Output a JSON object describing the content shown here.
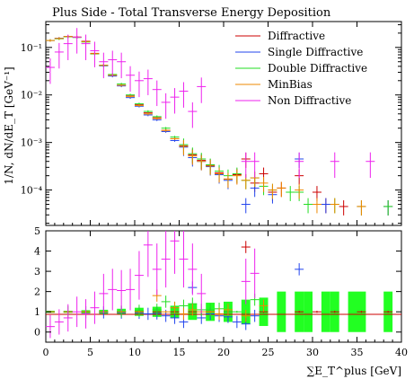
{
  "chart_data": {
    "type": "scatter",
    "title": "Plus Side - Total Transverse Energy Deposition",
    "xlabel": "∑E_T^plus [GeV]",
    "ylabel": "1/N, dN/dE_T [GeV⁻¹]",
    "xlim": [
      0,
      40
    ],
    "main": {
      "yscale": "log",
      "ylim": [
        1.8e-05,
        0.35
      ],
      "yticks": [
        {
          "v": 0.1,
          "l": "10⁻¹"
        },
        {
          "v": 0.01,
          "l": "10⁻²"
        },
        {
          "v": 0.001,
          "l": "10⁻³"
        },
        {
          "v": 0.0001,
          "l": "10⁻⁴"
        }
      ]
    },
    "ratio": {
      "yscale": "linear",
      "ylim": [
        -0.5,
        5
      ],
      "yticks": [
        0,
        1,
        2,
        3,
        4,
        5
      ]
    },
    "xticks": [
      0,
      5,
      10,
      15,
      20,
      25,
      30,
      35,
      40
    ],
    "legend_position": "top-right",
    "legend": [
      "Diffractive",
      "Single Diffractive",
      "Double Diffractive",
      "MinBias",
      "Non Diffractive"
    ],
    "colors": {
      "Diffractive": "#cc0000",
      "Single Diffractive": "#2244ee",
      "Double Diffractive": "#22dd22",
      "MinBias": "#ee8800",
      "Non Diffractive": "#ee22ee"
    },
    "series": [
      {
        "name": "Diffractive",
        "points": [
          [
            0.5,
            0.14
          ],
          [
            1.5,
            0.155
          ],
          [
            2.5,
            0.17
          ],
          [
            3.5,
            0.165
          ],
          [
            4.5,
            0.135
          ],
          [
            5.5,
            0.075
          ],
          [
            6.5,
            0.042
          ],
          [
            7.5,
            0.026
          ],
          [
            8.5,
            0.016
          ],
          [
            9.5,
            0.0095
          ],
          [
            10.5,
            0.0062
          ],
          [
            11.5,
            0.0042
          ],
          [
            12.5,
            0.0033
          ],
          [
            13.5,
            0.0018
          ],
          [
            14.5,
            0.0012
          ],
          [
            15.5,
            0.00085
          ],
          [
            16.5,
            0.00055
          ],
          [
            17.5,
            0.00042
          ],
          [
            18.5,
            0.00033
          ],
          [
            19.5,
            0.00023
          ],
          [
            20.5,
            0.00017
          ],
          [
            21.5,
            0.00021
          ],
          [
            22.5,
            0.00045
          ],
          [
            23.5,
            0.00014
          ],
          [
            24.5,
            0.00022
          ],
          [
            25.5,
            9e-05
          ],
          [
            26.5,
            0.00011
          ],
          [
            28.5,
            0.0002
          ],
          [
            30.5,
            9e-05
          ],
          [
            31.5,
            5e-05
          ],
          [
            33.5,
            4.5e-05
          ],
          [
            35.5,
            4.5e-05
          ],
          [
            38.5,
            4.5e-05
          ]
        ]
      },
      {
        "name": "Single Diffractive",
        "points": [
          [
            0.5,
            0.14
          ],
          [
            1.5,
            0.155
          ],
          [
            2.5,
            0.168
          ],
          [
            3.5,
            0.163
          ],
          [
            4.5,
            0.132
          ],
          [
            5.5,
            0.073
          ],
          [
            6.5,
            0.041
          ],
          [
            7.5,
            0.025
          ],
          [
            8.5,
            0.0155
          ],
          [
            9.5,
            0.0088
          ],
          [
            10.5,
            0.0058
          ],
          [
            11.5,
            0.0038
          ],
          [
            12.5,
            0.003
          ],
          [
            13.5,
            0.0017
          ],
          [
            14.5,
            0.0011
          ],
          [
            15.5,
            0.0008
          ],
          [
            16.5,
            0.00048
          ],
          [
            17.5,
            0.0004
          ],
          [
            18.5,
            0.00031
          ],
          [
            19.5,
            0.00021
          ],
          [
            20.5,
            0.00016
          ],
          [
            22.5,
            5e-05
          ],
          [
            23.5,
            0.00011
          ],
          [
            25.5,
            8e-05
          ],
          [
            28.5,
            0.00045
          ],
          [
            31.5,
            5e-05
          ],
          [
            38.5,
            4.5e-05
          ]
        ]
      },
      {
        "name": "Double Diffractive",
        "points": [
          [
            0.5,
            0.14
          ],
          [
            1.5,
            0.152
          ],
          [
            2.5,
            0.167
          ],
          [
            3.5,
            0.162
          ],
          [
            4.5,
            0.13
          ],
          [
            5.5,
            0.073
          ],
          [
            6.5,
            0.042
          ],
          [
            7.5,
            0.027
          ],
          [
            8.5,
            0.017
          ],
          [
            9.5,
            0.01
          ],
          [
            10.5,
            0.0065
          ],
          [
            11.5,
            0.0045
          ],
          [
            12.5,
            0.0035
          ],
          [
            13.5,
            0.002
          ],
          [
            14.5,
            0.0013
          ],
          [
            15.5,
            0.0009
          ],
          [
            16.5,
            0.00058
          ],
          [
            17.5,
            0.00045
          ],
          [
            18.5,
            0.00034
          ],
          [
            19.5,
            0.00025
          ],
          [
            20.5,
            0.0002
          ],
          [
            21.5,
            0.00022
          ],
          [
            22.5,
            0.00016
          ],
          [
            23.5,
            0.00018
          ],
          [
            24.5,
            0.00012
          ],
          [
            25.5,
            0.0001
          ],
          [
            27.5,
            9e-05
          ],
          [
            28.5,
            9e-05
          ],
          [
            29.5,
            5e-05
          ],
          [
            32.5,
            5e-05
          ],
          [
            35.5,
            4.5e-05
          ],
          [
            38.5,
            4.5e-05
          ]
        ]
      },
      {
        "name": "MinBias",
        "points": [
          [
            0.5,
            0.14
          ],
          [
            1.5,
            0.154
          ],
          [
            2.5,
            0.169
          ],
          [
            3.5,
            0.164
          ],
          [
            4.5,
            0.133
          ],
          [
            5.5,
            0.074
          ],
          [
            6.5,
            0.042
          ],
          [
            7.5,
            0.026
          ],
          [
            8.5,
            0.016
          ],
          [
            9.5,
            0.0093
          ],
          [
            10.5,
            0.006
          ],
          [
            11.5,
            0.004
          ],
          [
            12.5,
            0.0032
          ],
          [
            13.5,
            0.0018
          ],
          [
            14.5,
            0.0012
          ],
          [
            15.5,
            0.00083
          ],
          [
            16.5,
            0.00052
          ],
          [
            17.5,
            0.0004
          ],
          [
            18.5,
            0.00032
          ],
          [
            19.5,
            0.00022
          ],
          [
            20.5,
            0.00017
          ],
          [
            21.5,
            0.0002
          ],
          [
            22.5,
            0.00016
          ],
          [
            23.5,
            0.00018
          ],
          [
            24.5,
            0.00014
          ],
          [
            25.5,
            0.0001
          ],
          [
            26.5,
            0.00011
          ],
          [
            28.5,
            0.0001
          ],
          [
            30.5,
            5e-05
          ],
          [
            32.5,
            5e-05
          ],
          [
            35.5,
            4.5e-05
          ]
        ]
      },
      {
        "name": "Non Diffractive",
        "points": [
          [
            0.5,
            0.038
          ],
          [
            1.5,
            0.08
          ],
          [
            2.5,
            0.12
          ],
          [
            3.5,
            0.165
          ],
          [
            4.5,
            0.12
          ],
          [
            5.5,
            0.085
          ],
          [
            6.5,
            0.05
          ],
          [
            7.5,
            0.055
          ],
          [
            8.5,
            0.05
          ],
          [
            9.5,
            0.026
          ],
          [
            10.5,
            0.02
          ],
          [
            11.5,
            0.022
          ],
          [
            12.5,
            0.013
          ],
          [
            13.5,
            0.007
          ],
          [
            14.5,
            0.009
          ],
          [
            15.5,
            0.012
          ],
          [
            16.5,
            0.0045
          ],
          [
            17.5,
            0.015
          ],
          [
            22.5,
            0.0004
          ],
          [
            23.5,
            0.0004
          ],
          [
            28.5,
            0.0004
          ],
          [
            32.5,
            0.0004
          ],
          [
            36.5,
            0.0004
          ]
        ]
      }
    ],
    "ratio_series": [
      {
        "name": "Diffractive",
        "points": [
          [
            0.5,
            1
          ],
          [
            2.5,
            1
          ],
          [
            4.5,
            1
          ],
          [
            6.5,
            1
          ],
          [
            8.5,
            1
          ],
          [
            10.5,
            1
          ],
          [
            12.5,
            1
          ],
          [
            14.5,
            1
          ],
          [
            16.5,
            1
          ],
          [
            18.5,
            1
          ],
          [
            20.5,
            1
          ],
          [
            22.5,
            4.2
          ],
          [
            24.5,
            1
          ],
          [
            28.5,
            1
          ],
          [
            30.5,
            1
          ],
          [
            32.5,
            1
          ],
          [
            35.5,
            1
          ],
          [
            38.5,
            1
          ]
        ]
      },
      {
        "name": "Single Diffractive",
        "points": [
          [
            0.5,
            1
          ],
          [
            2.5,
            1
          ],
          [
            4.5,
            0.98
          ],
          [
            6.5,
            0.97
          ],
          [
            8.5,
            0.96
          ],
          [
            10.5,
            0.95
          ],
          [
            11.5,
            0.9
          ],
          [
            12.5,
            0.92
          ],
          [
            13.5,
            0.8
          ],
          [
            14.5,
            0.7
          ],
          [
            15.5,
            0.5
          ],
          [
            16.5,
            2.2
          ],
          [
            17.5,
            0.7
          ],
          [
            18.5,
            0.9
          ],
          [
            19.5,
            0.8
          ],
          [
            20.5,
            0.75
          ],
          [
            21.5,
            0.5
          ],
          [
            22.5,
            0.4
          ],
          [
            23.5,
            0.8
          ],
          [
            28.5,
            3.1
          ]
        ]
      },
      {
        "name": "Double Diffractive",
        "points": [
          [
            0.5,
            1
          ],
          [
            2.5,
            0.99
          ],
          [
            4.5,
            0.98
          ],
          [
            6.5,
            1
          ],
          [
            8.5,
            1.02
          ],
          [
            10.5,
            1.05
          ],
          [
            12.5,
            1.1
          ],
          [
            13.5,
            1.5
          ],
          [
            14.5,
            1.2
          ],
          [
            15.5,
            1.3
          ],
          [
            16.5,
            1.4
          ],
          [
            17.5,
            1.1
          ],
          [
            18.5,
            1.1
          ],
          [
            19.5,
            1.15
          ],
          [
            20.5,
            1.0
          ],
          [
            21.5,
            1.0
          ],
          [
            23.5,
            1.6
          ]
        ]
      },
      {
        "name": "MinBias",
        "points": [
          [
            0.5,
            1
          ],
          [
            2.5,
            1
          ],
          [
            4.5,
            1
          ],
          [
            6.5,
            1
          ],
          [
            8.5,
            1
          ],
          [
            10.5,
            1
          ],
          [
            12.5,
            1.8
          ],
          [
            13.5,
            1.0
          ],
          [
            14.5,
            1.2
          ],
          [
            15.5,
            0.9
          ],
          [
            16.5,
            1.1
          ],
          [
            17.5,
            1.0
          ],
          [
            18.5,
            1.0
          ],
          [
            19.5,
            0.9
          ],
          [
            20.5,
            1.1
          ],
          [
            22.5,
            0.8
          ],
          [
            24.5,
            1.3
          ]
        ]
      },
      {
        "name": "Non Diffractive",
        "points": [
          [
            0.5,
            0.27
          ],
          [
            1.5,
            0.5
          ],
          [
            2.5,
            0.7
          ],
          [
            3.5,
            1.0
          ],
          [
            4.5,
            0.9
          ],
          [
            5.5,
            1.2
          ],
          [
            6.5,
            1.9
          ],
          [
            7.5,
            2.1
          ],
          [
            8.5,
            2.05
          ],
          [
            9.5,
            2.1
          ],
          [
            10.5,
            2.8
          ],
          [
            11.5,
            4.3
          ],
          [
            12.5,
            3.1
          ],
          [
            13.5,
            3.6
          ],
          [
            14.5,
            4.5
          ],
          [
            15.5,
            3.6
          ],
          [
            16.5,
            3.1
          ],
          [
            17.5,
            1.9
          ],
          [
            22.5,
            2.5
          ],
          [
            23.5,
            2.9
          ]
        ]
      }
    ],
    "ratio_band": [
      [
        0.5,
        0.95,
        1.05
      ],
      [
        2.5,
        0.95,
        1.05
      ],
      [
        4.5,
        0.92,
        1.08
      ],
      [
        6.5,
        0.9,
        1.1
      ],
      [
        8.5,
        0.85,
        1.15
      ],
      [
        10.5,
        0.8,
        1.2
      ],
      [
        12.5,
        0.75,
        1.25
      ],
      [
        14.5,
        0.7,
        1.3
      ],
      [
        16.5,
        0.6,
        1.4
      ],
      [
        18.5,
        0.55,
        1.45
      ],
      [
        20.5,
        0.5,
        1.5
      ],
      [
        22.5,
        0.4,
        1.6
      ],
      [
        24.5,
        0.3,
        1.7
      ],
      [
        26.5,
        0,
        2
      ],
      [
        28.5,
        0,
        2
      ],
      [
        29.5,
        0,
        2
      ],
      [
        31.5,
        0,
        2
      ],
      [
        32.5,
        0,
        2
      ],
      [
        34.5,
        0,
        2
      ],
      [
        35.5,
        0,
        2
      ],
      [
        38.5,
        0,
        2
      ]
    ]
  }
}
